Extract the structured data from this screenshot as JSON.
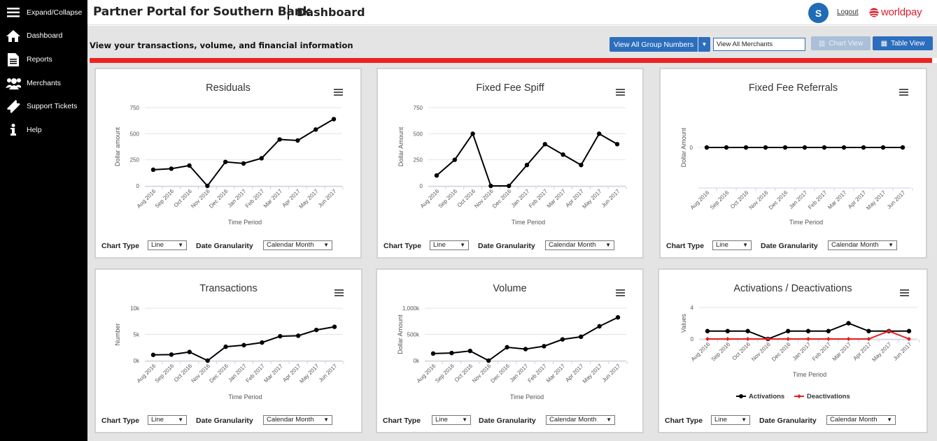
{
  "sidebar": {
    "items": [
      {
        "label": "Expand/Collapse",
        "icon": "hamburger-icon"
      },
      {
        "label": "Dashboard",
        "icon": "home-icon"
      },
      {
        "label": "Reports",
        "icon": "document-icon"
      },
      {
        "label": "Merchants",
        "icon": "users-icon"
      },
      {
        "label": "Support Tickets",
        "icon": "ticket-icon"
      },
      {
        "label": "Help",
        "icon": "info-icon"
      }
    ]
  },
  "header": {
    "portal_title": "Partner Portal for Southern Bank",
    "page_title": "Dashboard",
    "avatar_initial": "S",
    "logout_label": "Logout",
    "brand": "worldpay"
  },
  "toolbar": {
    "subtitle": "View your transactions, volume, and financial information",
    "group_button": "View All Group Numbers",
    "merchant_value": "View All Merchants",
    "chart_view": "Chart View",
    "table_view": "Table View"
  },
  "colors": {
    "accent": "#2c6ebd",
    "alert_bar": "#ee2222",
    "series_primary": "#000000",
    "series_secondary": "#e62020"
  },
  "controls": {
    "chart_type_label": "Chart Type",
    "chart_type_value": "Line",
    "granularity_label": "Date Granularity",
    "granularity_value": "Calendar Month"
  },
  "chart_data": [
    {
      "type": "line",
      "title": "Residuals",
      "xlabel": "Time Period",
      "ylabel": "Dollar amount",
      "categories": [
        "Aug 2016",
        "Sep 2016",
        "Oct 2016",
        "Nov 2016",
        "Dec 2016",
        "Jan 2017",
        "Feb 2017",
        "Mar 2017",
        "Apr 2017",
        "May 2017",
        "Jun 2017"
      ],
      "yticks": [
        "0",
        "250",
        "500",
        "750"
      ],
      "ylim": [
        0,
        750
      ],
      "series": [
        {
          "values": [
            155,
            165,
            195,
            0,
            230,
            215,
            265,
            445,
            435,
            540,
            640
          ]
        }
      ]
    },
    {
      "type": "line",
      "title": "Fixed Fee Spiff",
      "xlabel": "Time Period",
      "ylabel": "Dollar Amount",
      "categories": [
        "Aug 2016",
        "Sep 2016",
        "Oct 2016",
        "Nov 2016",
        "Dec 2016",
        "Jan 2017",
        "Feb 2017",
        "Mar 2017",
        "Apr 2017",
        "May 2017",
        "Jun 2017"
      ],
      "yticks": [
        "0",
        "250",
        "500",
        "750"
      ],
      "ylim": [
        0,
        750
      ],
      "series": [
        {
          "values": [
            100,
            250,
            500,
            0,
            0,
            200,
            400,
            300,
            200,
            500,
            400
          ]
        }
      ]
    },
    {
      "type": "line",
      "title": "Fixed Fee Referrals",
      "xlabel": "Time Period",
      "ylabel": "Dollar Amount",
      "categories": [
        "Aug 2016",
        "Sep 2016",
        "Oct 2016",
        "Nov 2016",
        "Dec 2016",
        "Jan 2017",
        "Feb 2017",
        "Mar 2017",
        "Apr 2017",
        "May 2017",
        "Jun 2017"
      ],
      "yticks": [
        "0"
      ],
      "ylim": [
        -1,
        1
      ],
      "series": [
        {
          "values": [
            0,
            0,
            0,
            0,
            0,
            0,
            0,
            0,
            0,
            0,
            0
          ]
        }
      ]
    },
    {
      "type": "line",
      "title": "Transactions",
      "xlabel": "Time Period",
      "ylabel": "Number",
      "categories": [
        "Aug 2016",
        "Sep 2016",
        "Oct 2016",
        "Nov 2016",
        "Dec 2016",
        "Jan 2017",
        "Feb 2017",
        "Mar 2017",
        "Apr 2017",
        "May 2017",
        "Jun 2017"
      ],
      "yticks": [
        "0k",
        "5k",
        "10k"
      ],
      "ylim": [
        0,
        10000
      ],
      "series": [
        {
          "values": [
            1100,
            1150,
            1650,
            0,
            2650,
            2950,
            3450,
            4650,
            4750,
            5850,
            6450
          ]
        }
      ]
    },
    {
      "type": "line",
      "title": "Volume",
      "xlabel": "Time Period",
      "ylabel": "Dollar Amount",
      "categories": [
        "Aug 2016",
        "Sep 2016",
        "Oct 2016",
        "Nov 2016",
        "Dec 2016",
        "Jan 2017",
        "Feb 2017",
        "Mar 2017",
        "Apr 2017",
        "May 2017",
        "Jun 2017"
      ],
      "yticks": [
        "0k",
        "500k",
        "1,000k"
      ],
      "ylim": [
        0,
        1000000
      ],
      "series": [
        {
          "values": [
            135000,
            145000,
            185000,
            0,
            255000,
            220000,
            275000,
            405000,
            455000,
            655000,
            825000
          ]
        }
      ]
    },
    {
      "type": "line",
      "title": "Activations  /  Deactivations",
      "xlabel": "Time Period",
      "ylabel": "Values",
      "categories": [
        "Aug 2016",
        "Sep 2016",
        "Oct 2016",
        "Nov 2016",
        "Dec 2016",
        "Jan 2017",
        "Feb 2017",
        "Mar 2017",
        "Apr 2017",
        "May 2017",
        "Jun 2017"
      ],
      "yticks": [
        "0",
        "4"
      ],
      "ylim": [
        0,
        4
      ],
      "legend": "bottom",
      "series": [
        {
          "name": "Activations",
          "color": "#000000",
          "values": [
            1,
            1,
            1,
            0,
            1,
            1,
            1,
            2,
            1,
            1,
            1
          ]
        },
        {
          "name": "Deactivations",
          "color": "#e62020",
          "values": [
            0,
            0,
            0,
            0,
            0,
            0,
            0,
            0,
            0,
            1,
            0
          ]
        }
      ]
    }
  ]
}
